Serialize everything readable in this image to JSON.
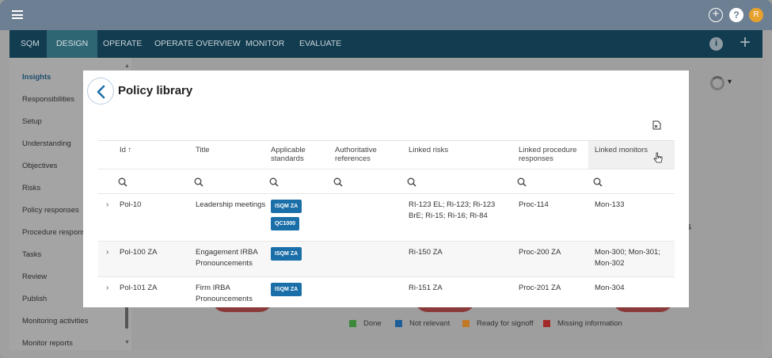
{
  "topbar": {
    "menu_icon": "hamburger-icon",
    "add_icon": "plus-circle-icon",
    "help_icon": "question-icon",
    "help_glyph": "?",
    "avatar_initial": "R",
    "avatar_color": "#e7a12d"
  },
  "nav": {
    "tabs": [
      {
        "label": "SQM"
      },
      {
        "label": "DESIGN"
      },
      {
        "label": "OPERATE"
      },
      {
        "label": "OPERATE OVERVIEW"
      },
      {
        "label": "MONITOR"
      },
      {
        "label": "EVALUATE"
      }
    ],
    "active": "DESIGN",
    "info_glyph": "i",
    "plus_glyph": "+"
  },
  "sidebar": {
    "items": [
      {
        "label": "Insights"
      },
      {
        "label": "Responsibilities"
      },
      {
        "label": "Setup"
      },
      {
        "label": "Understanding"
      },
      {
        "label": "Objectives"
      },
      {
        "label": "Risks"
      },
      {
        "label": "Policy responses"
      },
      {
        "label": "Procedure responses"
      },
      {
        "label": "Tasks"
      },
      {
        "label": "Review"
      },
      {
        "label": "Publish"
      },
      {
        "label": "Monitoring activities"
      },
      {
        "label": "Monitor reports"
      }
    ],
    "active": "Insights"
  },
  "background": {
    "legend": [
      {
        "label": "Done",
        "color": "#3a8a3a"
      },
      {
        "label": "Not relevant",
        "color": "#1f5f99"
      },
      {
        "label": "Ready for signoff",
        "color": "#c07a26"
      },
      {
        "label": "Missing information",
        "color": "#a32a2a"
      }
    ],
    "partial_text": "s"
  },
  "modal": {
    "title": "Policy library",
    "export_icon": "export-xls-icon",
    "columns": [
      {
        "label": "Id ↑"
      },
      {
        "label": "Title"
      },
      {
        "label": "Applicable standards"
      },
      {
        "label": "Authoritative references"
      },
      {
        "label": "Linked risks"
      },
      {
        "label": "Linked procedure responses"
      },
      {
        "label": "Linked monitors"
      }
    ],
    "rows": [
      {
        "id": "Pol-10",
        "title": "Leadership meetings",
        "standards": [
          "ISQM ZA",
          "QC1000"
        ],
        "references": "",
        "risks": "RI-123 EL; Ri-123; Ri-123 BrE; Ri-15; Ri-16; Ri-84",
        "procedures": "Proc-114",
        "monitors": "Mon-133"
      },
      {
        "id": "Pol-100 ZA",
        "title": "Engagement IRBA Pronouncements",
        "standards": [
          "ISQM ZA"
        ],
        "references": "",
        "risks": "Ri-150 ZA",
        "procedures": "Proc-200 ZA",
        "monitors": "Mon-300; Mon-301; Mon-302"
      },
      {
        "id": "Pol-101 ZA",
        "title": "Firm IRBA Pronouncements",
        "standards": [
          "ISQM ZA"
        ],
        "references": "",
        "risks": "Ri-151 ZA",
        "procedures": "Proc-201 ZA",
        "monitors": "Mon-304"
      }
    ]
  }
}
